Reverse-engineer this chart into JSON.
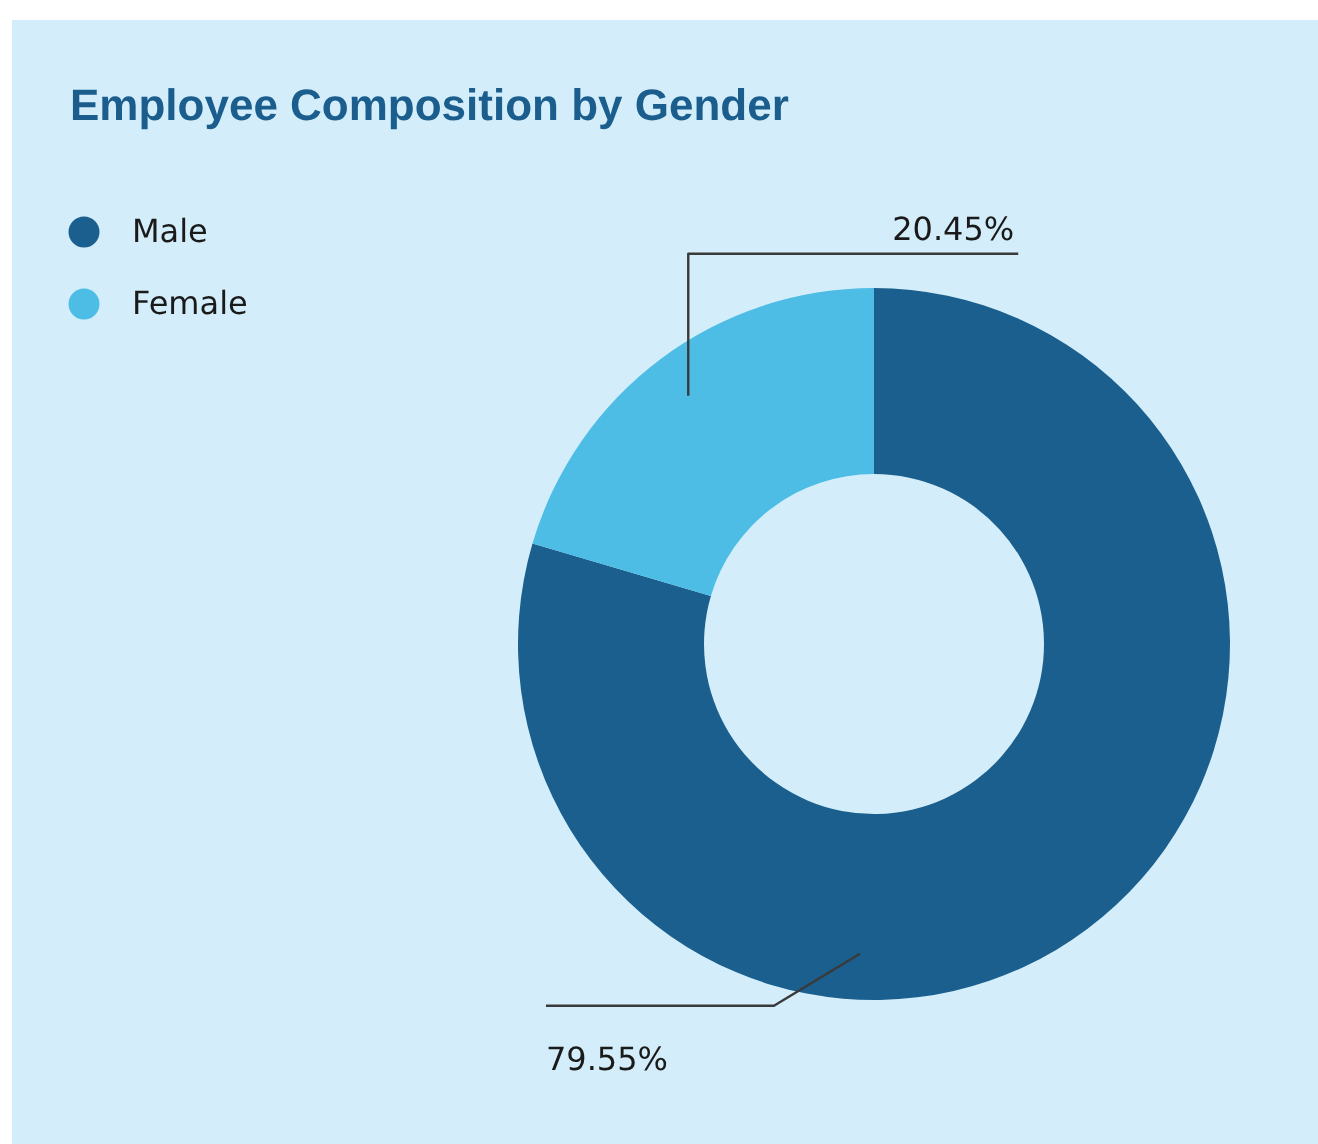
{
  "chart_data": {
    "type": "donut",
    "title": "Employee Composition by Gender",
    "categories": [
      "Male",
      "Female"
    ],
    "values": [
      79.55,
      20.45
    ],
    "colors": [
      "#1b5f8e",
      "#4ebde5"
    ],
    "value_labels": [
      "79.55%",
      "20.45%"
    ],
    "legend": "top left"
  }
}
